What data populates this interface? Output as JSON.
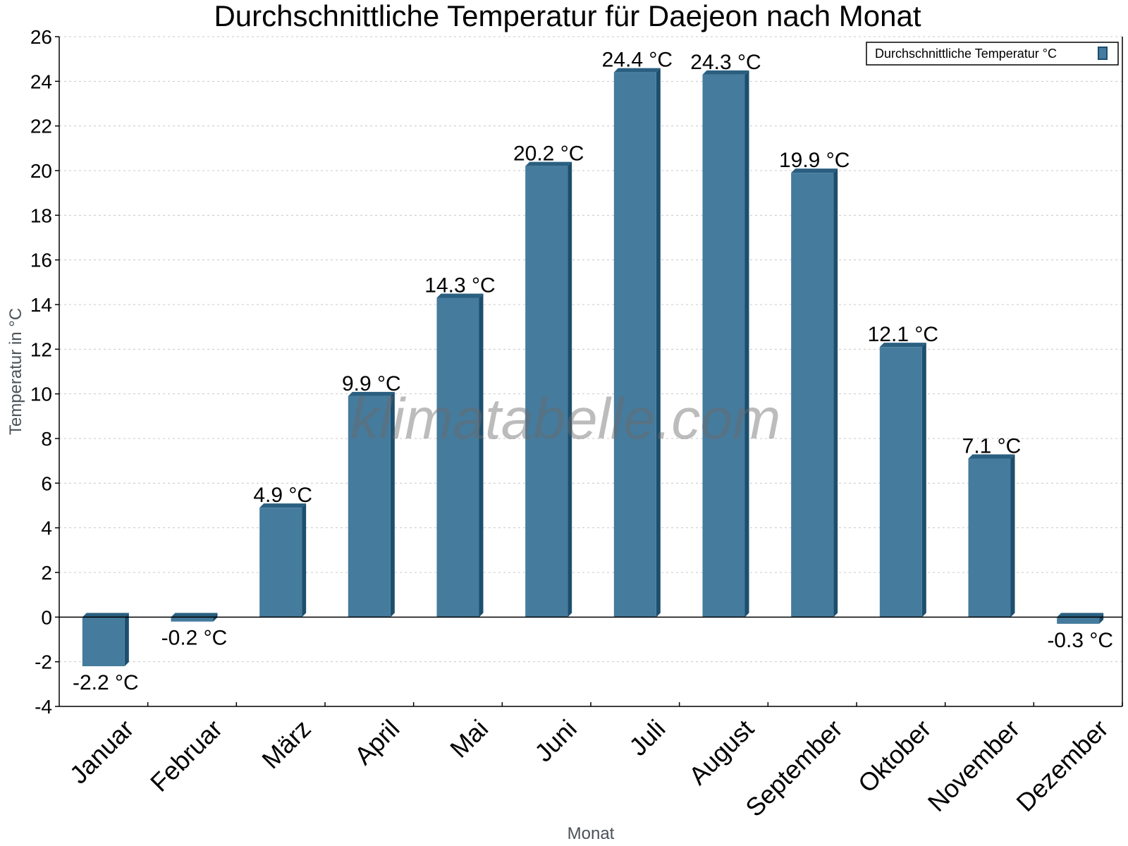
{
  "chart_data": {
    "type": "bar",
    "title": "Durchschnittliche Temperatur für Daejeon nach Monat",
    "xlabel": "Monat",
    "ylabel": "Temperatur in °C",
    "categories": [
      "Januar",
      "Februar",
      "März",
      "April",
      "Mai",
      "Juni",
      "Juli",
      "August",
      "September",
      "Oktober",
      "November",
      "Dezember"
    ],
    "series": [
      {
        "name": "Durchschnittliche Temperatur °C",
        "values": [
          -2.2,
          -0.2,
          4.9,
          9.9,
          14.3,
          20.2,
          24.4,
          24.3,
          19.9,
          12.1,
          7.1,
          -0.3
        ],
        "labels": [
          "-2.2 °C",
          "-0.2 °C",
          "4.9 °C",
          "9.9 °C",
          "14.3 °C",
          "20.2 °C",
          "24.4 °C",
          "24.3 °C",
          "19.9 °C",
          "12.1 °C",
          "7.1 °C",
          "-0.3 °C"
        ]
      }
    ],
    "ylim": [
      -4,
      26
    ],
    "yticks": [
      -4,
      -2,
      0,
      2,
      4,
      6,
      8,
      10,
      12,
      14,
      16,
      18,
      20,
      22,
      24,
      26
    ],
    "grid": true,
    "legend_position": "top-right",
    "watermark": "klimatabelle.com",
    "colors": {
      "bar_front": "#457b9d",
      "bar_side": "#1d4e6e",
      "bar_top": "#2a5f80",
      "grid": "#c8c8c8",
      "axis": "#000000"
    }
  }
}
